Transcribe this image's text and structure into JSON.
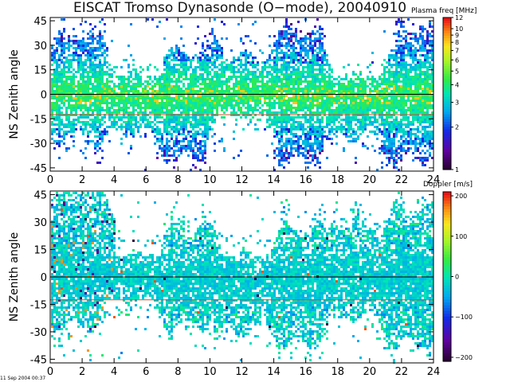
{
  "title": "EISCAT Tromso Dynasonde (O−mode),  20040910",
  "timestamp": "11 Sep 2004 00:37",
  "chart_data": [
    {
      "type": "heatmap",
      "ylabel": "NS Zenith angle",
      "xlim": [
        0,
        24
      ],
      "ylim": [
        -47,
        47
      ],
      "xticks": [
        "0",
        "2",
        "4",
        "6",
        "8",
        "10",
        "12",
        "14",
        "16",
        "18",
        "20",
        "22",
        "24"
      ],
      "yticks": [
        "45",
        "30",
        "15",
        "0",
        "-15",
        "-30",
        "-45"
      ],
      "ytick_values": [
        45,
        30,
        15,
        0,
        -15,
        -30,
        -45
      ],
      "reference_lines": [
        {
          "y": 0,
          "color": "#000000"
        },
        {
          "y": -12.5,
          "color": "#c8502a"
        }
      ],
      "colorbar": {
        "label": "Plasma freq [MHz]",
        "scale": "log",
        "range": [
          1,
          12
        ],
        "ticks": [
          "12",
          "10",
          "9",
          "8",
          "7",
          "6",
          "5",
          "4",
          "3",
          "2",
          "1"
        ],
        "tick_values": [
          12,
          10,
          9,
          8,
          7,
          6,
          5,
          4,
          3,
          2,
          1
        ]
      }
    },
    {
      "type": "heatmap",
      "ylabel": "NS Zenith angle",
      "xlim": [
        0,
        24
      ],
      "ylim": [
        -47,
        47
      ],
      "xticks": [
        "0",
        "2",
        "4",
        "6",
        "8",
        "10",
        "12",
        "14",
        "16",
        "18",
        "20",
        "22",
        "24"
      ],
      "yticks": [
        "45",
        "30",
        "15",
        "0",
        "-15",
        "-30",
        "-45"
      ],
      "ytick_values": [
        45,
        30,
        15,
        0,
        -15,
        -30,
        -45
      ],
      "reference_lines": [
        {
          "y": 0,
          "color": "#000000"
        },
        {
          "y": -12.5,
          "color": "#c8502a"
        }
      ],
      "colorbar": {
        "label": "Doppler [m/s]",
        "scale": "linear",
        "range": [
          -210,
          210
        ],
        "ticks": [
          "200",
          "100",
          "0",
          "−100",
          "−200"
        ],
        "tick_values": [
          200,
          100,
          0,
          -100,
          -200
        ]
      }
    }
  ]
}
